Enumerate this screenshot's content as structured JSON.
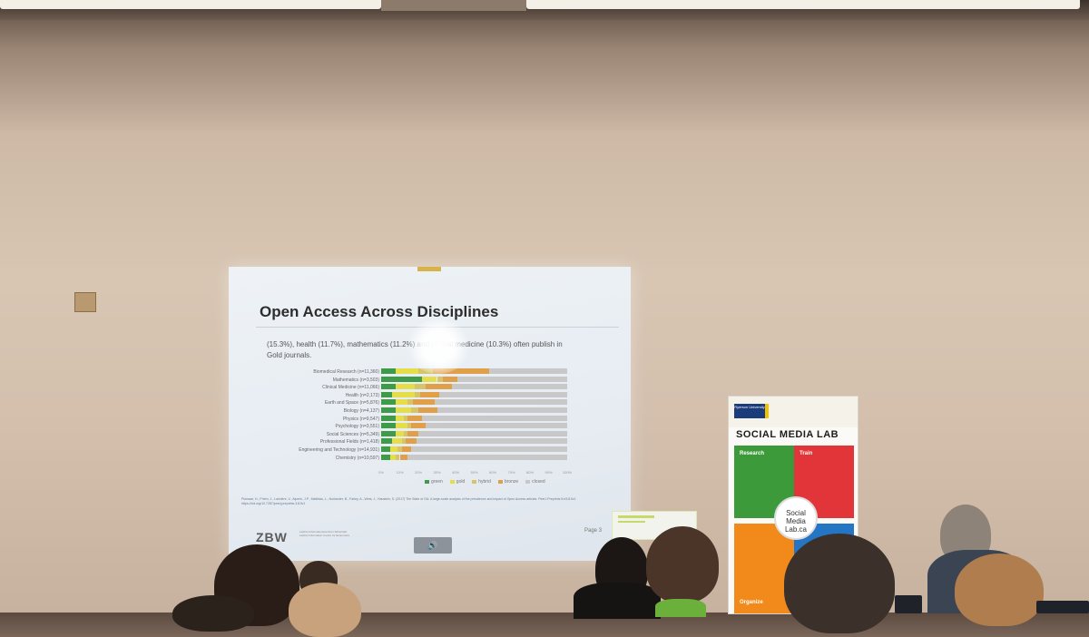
{
  "slide": {
    "title": "Open Access Across Disciplines",
    "body_text": "(15.3%), health (11.7%), mathematics (11.2%) and clinical medicine (10.3%) often publish in Gold journals.",
    "citation": "Piwowar, H., Priem, J., Larivière, V., Alperin, J.P., Matthias, L., Norlander, B., Farley, A., West, J., Haustein, S. (2017) The State of OA: A large-scale analysis of the prevalence and impact of Open Access articles. PeerJ Preprints 5:e3119v1 https://doi.org/10.7287/peerj.preprints.3119v1",
    "footer_logo": "ZBW",
    "footer_org": "Leibniz-Informationszentrum Wirtschaft Leibniz Information Centre for Economics",
    "page_label": "Page 3",
    "speaker_icon": "🔊"
  },
  "chart_data": {
    "type": "bar",
    "categories": [
      "Biomedical Research (n=11,360)",
      "Mathematics (n=3,503)",
      "Clinical Medicine (n=11,066)",
      "Health (n=2,173)",
      "Earth and Space (n=5,876)",
      "Biology (n=4,137)",
      "Physics (n=9,547)",
      "Psychology (n=3,551)",
      "Social Sciences (n=5,349)",
      "Professional Fields (n=1,418)",
      "Engineering and Technology (n=14,931)",
      "Chemistry (n=10,597)"
    ],
    "series": [
      {
        "name": "green",
        "values": [
          8,
          22,
          8,
          6,
          8,
          8,
          8,
          8,
          8,
          6,
          5,
          5
        ]
      },
      {
        "name": "gold",
        "values": [
          12,
          8,
          10,
          12,
          6,
          8,
          4,
          6,
          4,
          5,
          4,
          3
        ]
      },
      {
        "name": "hybrid",
        "values": [
          8,
          3,
          6,
          3,
          3,
          4,
          2,
          2,
          2,
          2,
          2,
          2
        ]
      },
      {
        "name": "bronze",
        "values": [
          30,
          8,
          14,
          10,
          12,
          10,
          8,
          8,
          6,
          6,
          5,
          4
        ]
      },
      {
        "name": "closed",
        "values": [
          42,
          59,
          62,
          69,
          71,
          70,
          78,
          76,
          80,
          81,
          84,
          86
        ]
      }
    ],
    "xticks": [
      "0%",
      "10%",
      "20%",
      "30%",
      "40%",
      "50%",
      "60%",
      "70%",
      "80%",
      "90%",
      "100%"
    ],
    "xlim": [
      0,
      100
    ],
    "colors": {
      "green": "#3f9a4a",
      "gold": "#e3de4a",
      "hybrid": "#d6c46a",
      "bronze": "#e0a04a",
      "closed": "#c8c8c8"
    },
    "legend_position": "bottom"
  },
  "banner": {
    "university": "Ryerson University",
    "title": "SOCIAL MEDIA LAB",
    "tiles": [
      "Research",
      "Train",
      "Organize"
    ],
    "center_logo": "Social Media Lab.ca"
  },
  "colors": {
    "wall": "#d5c2ae",
    "screen": "#e8edf2",
    "banner_green": "#3d9a3a",
    "banner_red": "#e2353a",
    "banner_orange": "#f18a1b",
    "banner_blue": "#2475c4"
  }
}
